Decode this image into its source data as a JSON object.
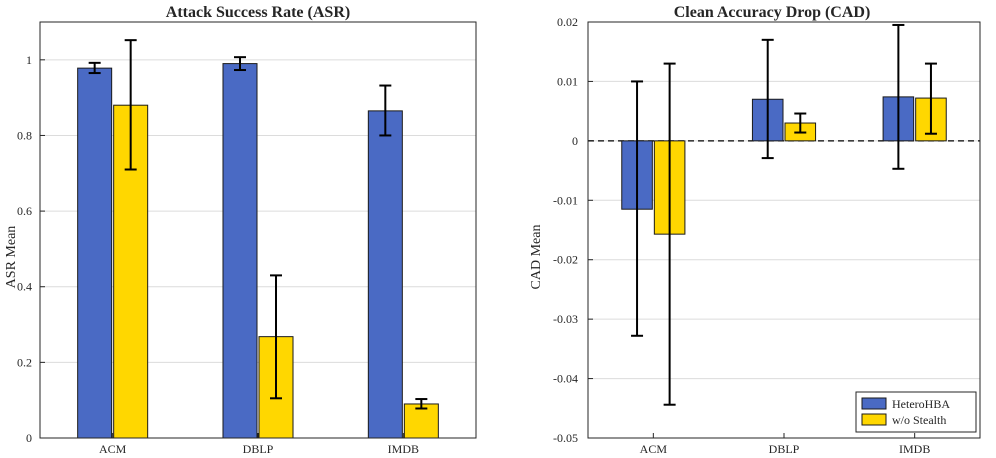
{
  "chart_data": [
    {
      "type": "bar",
      "title": "Attack Success Rate (ASR)",
      "xlabel": "",
      "ylabel": "ASR Mean",
      "ylim": [
        0,
        1.1
      ],
      "yticks": [
        0,
        0.2,
        0.4,
        0.6,
        0.8,
        1
      ],
      "ytick_labels": [
        "0",
        "0.2",
        "0.4",
        "0.6",
        "0.8",
        "1"
      ],
      "grid": "y",
      "categories": [
        "ACM",
        "DBLP",
        "IMDB"
      ],
      "series": [
        {
          "name": "HeteroHBA",
          "color": "#4a6ac4",
          "values": [
            0.978,
            0.99,
            0.865
          ],
          "err_low": [
            0.965,
            0.973,
            0.8
          ],
          "err_high": [
            0.992,
            1.007,
            0.932
          ]
        },
        {
          "name": "w/o Stealth",
          "color": "#ffd700",
          "values": [
            0.88,
            0.268,
            0.09
          ],
          "err_low": [
            0.71,
            0.105,
            0.078
          ],
          "err_high": [
            1.052,
            0.43,
            0.103
          ]
        }
      ]
    },
    {
      "type": "bar",
      "title": "Clean Accuracy Drop (CAD)",
      "xlabel": "",
      "ylabel": "CAD Mean",
      "ylim": [
        -0.05,
        0.02
      ],
      "yticks": [
        -0.05,
        -0.04,
        -0.03,
        -0.02,
        -0.01,
        0,
        0.01,
        0.02
      ],
      "ytick_labels": [
        "-0.05",
        "-0.04",
        "-0.03",
        "-0.02",
        "-0.01",
        "0",
        "0.01",
        "0.02"
      ],
      "grid": "y",
      "zero_line": "dashed",
      "legend_position": "bottom-right",
      "legend": [
        "HeteroHBA",
        "w/o Stealth"
      ],
      "categories": [
        "ACM",
        "DBLP",
        "IMDB"
      ],
      "series": [
        {
          "name": "HeteroHBA",
          "color": "#4a6ac4",
          "values": [
            -0.0115,
            0.007,
            0.0074
          ],
          "err_low": [
            -0.0328,
            -0.0029,
            -0.0047
          ],
          "err_high": [
            0.01,
            0.017,
            0.0195
          ]
        },
        {
          "name": "w/o Stealth",
          "color": "#ffd700",
          "values": [
            -0.0157,
            0.003,
            0.0072
          ],
          "err_low": [
            -0.0444,
            0.0014,
            0.0012
          ],
          "err_high": [
            0.013,
            0.0046,
            0.013
          ]
        }
      ]
    }
  ]
}
